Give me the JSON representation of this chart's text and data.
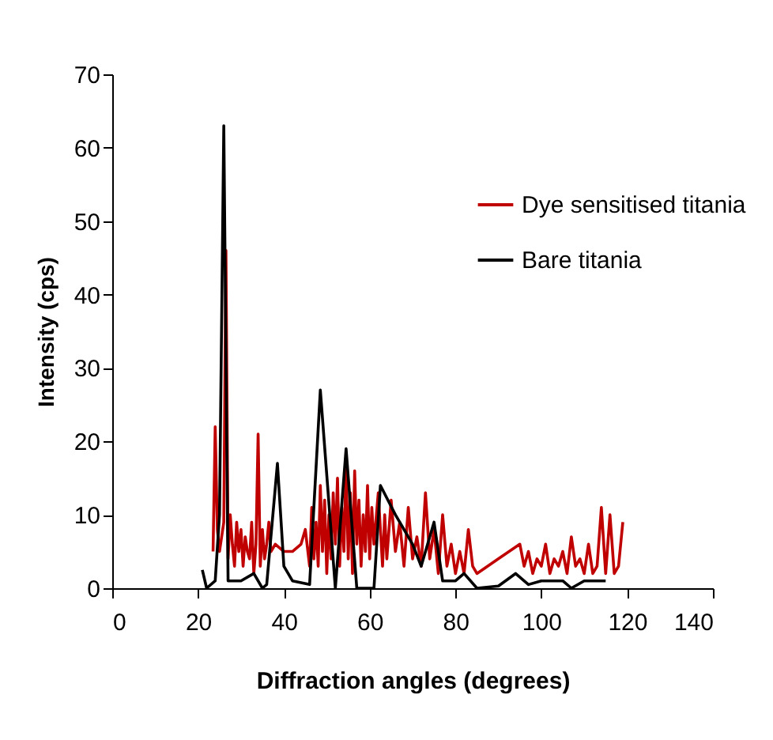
{
  "chart_data": {
    "type": "line",
    "xlabel": "Diffraction angles (degrees)",
    "ylabel": "Intensity (cps)",
    "xlim": [
      0,
      140
    ],
    "xticks": [
      0,
      20,
      40,
      60,
      80,
      100,
      120,
      140
    ],
    "ylim": [
      0,
      70
    ],
    "yticks": [
      0,
      10,
      20,
      30,
      40,
      50,
      60,
      70
    ],
    "grid": false,
    "legend": "top right",
    "marker": "none",
    "line_style": "solid",
    "series": [
      {
        "name": "Dye sensitised titania",
        "color": "#c00000",
        "x": [
          23.5,
          24,
          24.5,
          25,
          26,
          26.5,
          27,
          27.5,
          28,
          28.5,
          29,
          29.5,
          30,
          30.5,
          31,
          31.5,
          32,
          32.5,
          33,
          33.5,
          34,
          34.5,
          35,
          35.5,
          36,
          36.5,
          37,
          38,
          40,
          42,
          44,
          45,
          46,
          46.5,
          47,
          47.5,
          48,
          48.5,
          49,
          49.5,
          50,
          50.5,
          51,
          51.5,
          52,
          52.5,
          53,
          53.5,
          54,
          54.5,
          55,
          55.5,
          56,
          56.5,
          57,
          57.5,
          58,
          58.5,
          59,
          59.5,
          60,
          60.5,
          61,
          62,
          63,
          63.5,
          64,
          65,
          66,
          67,
          68,
          69,
          70,
          71,
          72,
          73,
          74,
          75,
          76,
          77,
          78,
          79,
          80,
          81,
          82,
          83,
          84,
          85,
          90,
          95,
          96,
          97,
          98,
          99,
          100,
          101,
          102,
          103,
          104,
          105,
          106,
          107,
          108,
          109,
          110,
          111,
          112,
          113,
          114,
          115,
          116,
          117,
          118,
          119
        ],
        "values": [
          5,
          22,
          8,
          5,
          9,
          46,
          4,
          10,
          6,
          3,
          9,
          5,
          8,
          3,
          7,
          5,
          4,
          9,
          2,
          6,
          21,
          3,
          8,
          4,
          6,
          9,
          5,
          6,
          5,
          5,
          6,
          8,
          3,
          11,
          4,
          9,
          3,
          14,
          5,
          12,
          2,
          10,
          4,
          13,
          6,
          15,
          3,
          11,
          5,
          17,
          4,
          13,
          2,
          16,
          6,
          12,
          3,
          10,
          5,
          14,
          4,
          11,
          6,
          13,
          3,
          10,
          4,
          12,
          5,
          9,
          3,
          11,
          4,
          7,
          3,
          13,
          4,
          8,
          2,
          10,
          3,
          6,
          2,
          5,
          2,
          8,
          3,
          2,
          4,
          6,
          3,
          5,
          2,
          4,
          3,
          6,
          2,
          4,
          3,
          5,
          2,
          7,
          3,
          4,
          2,
          6,
          2,
          3,
          11,
          2,
          10,
          2,
          3,
          9
        ]
      },
      {
        "name": "Bare titania",
        "color": "#000000",
        "x": [
          21,
          22,
          24,
          25,
          26,
          27,
          30,
          33,
          35,
          36,
          38.5,
          40,
          42,
          46,
          48.5,
          52,
          54.5,
          57,
          61,
          62.5,
          66,
          70,
          72,
          75,
          77,
          80,
          82,
          85,
          90,
          94,
          97,
          100,
          105,
          107,
          110,
          115
        ],
        "values": [
          2.5,
          0,
          1,
          10,
          63,
          1,
          1,
          2,
          0,
          0.5,
          17,
          3,
          1,
          0.5,
          27,
          0,
          19,
          0,
          0,
          14,
          10,
          6,
          3,
          9,
          1,
          1,
          2,
          0,
          0.3,
          2,
          0.5,
          1,
          1,
          0,
          1,
          1
        ]
      }
    ]
  }
}
